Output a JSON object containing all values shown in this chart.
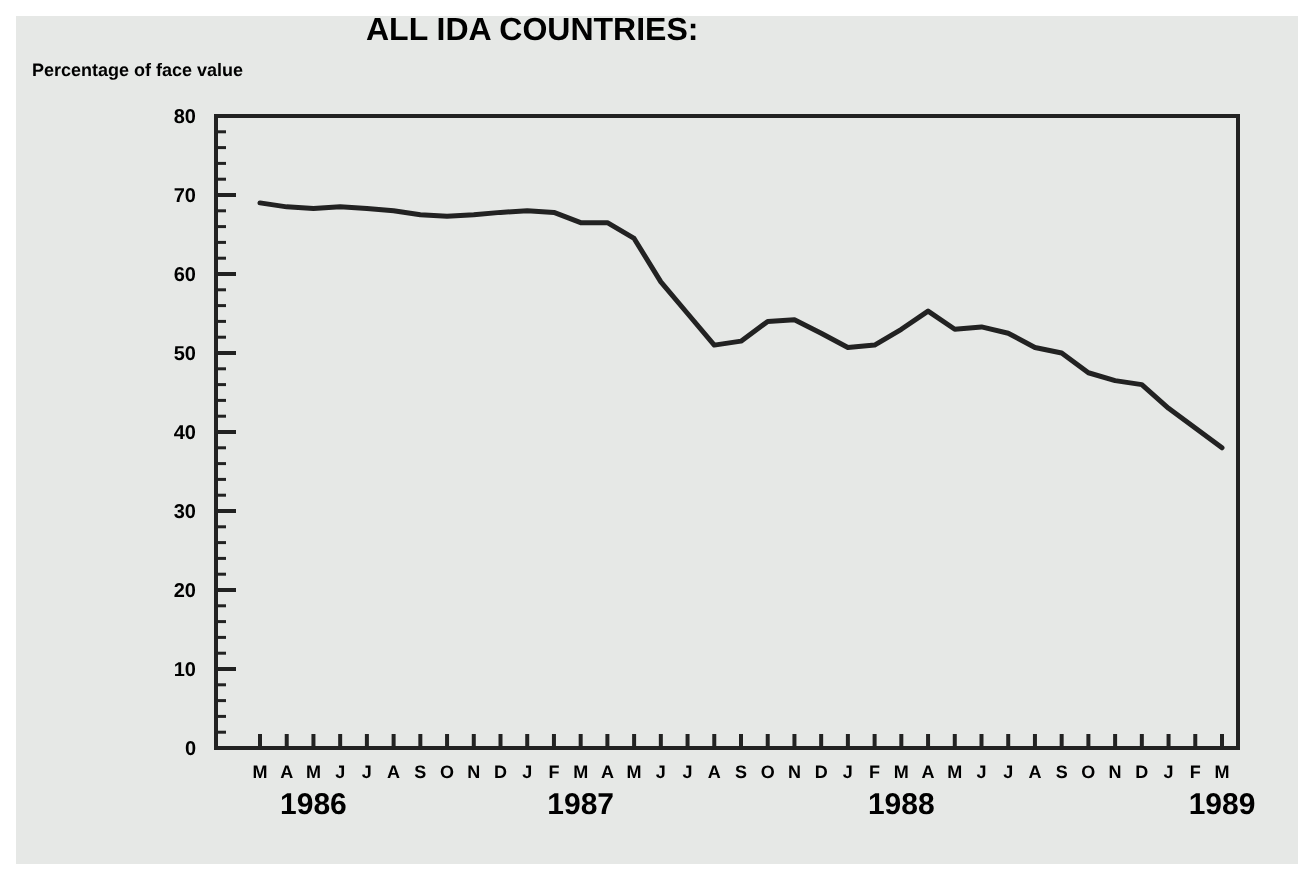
{
  "chart_data": {
    "type": "line",
    "title": "ALL IDA COUNTRIES:",
    "ylabel": "Percentage of face value",
    "categories": [
      "M",
      "A",
      "M",
      "J",
      "J",
      "A",
      "S",
      "O",
      "N",
      "D",
      "J",
      "F",
      "M",
      "A",
      "M",
      "J",
      "J",
      "A",
      "S",
      "O",
      "N",
      "D",
      "J",
      "F",
      "M",
      "A",
      "M",
      "J",
      "J",
      "A",
      "S",
      "O",
      "N",
      "D",
      "J",
      "F",
      "M"
    ],
    "values": [
      69,
      68.5,
      68.3,
      68.5,
      68.3,
      68,
      67.5,
      67.3,
      67.5,
      67.8,
      68,
      67.8,
      66.5,
      66.5,
      64.5,
      59,
      55,
      51,
      51.5,
      54,
      54.2,
      52.5,
      50.7,
      51,
      53,
      55.3,
      53,
      53.3,
      52.5,
      50.7,
      50,
      47.5,
      46.5,
      46,
      43,
      40.5,
      38
    ],
    "color": "#222222",
    "ylim": [
      0,
      80
    ],
    "yticks": [
      0,
      10,
      20,
      30,
      40,
      50,
      60,
      70,
      80
    ],
    "grid": false,
    "marker": "none",
    "line_style": "solid",
    "annotations": [
      "1986",
      "1987",
      "1988",
      "1989"
    ]
  }
}
